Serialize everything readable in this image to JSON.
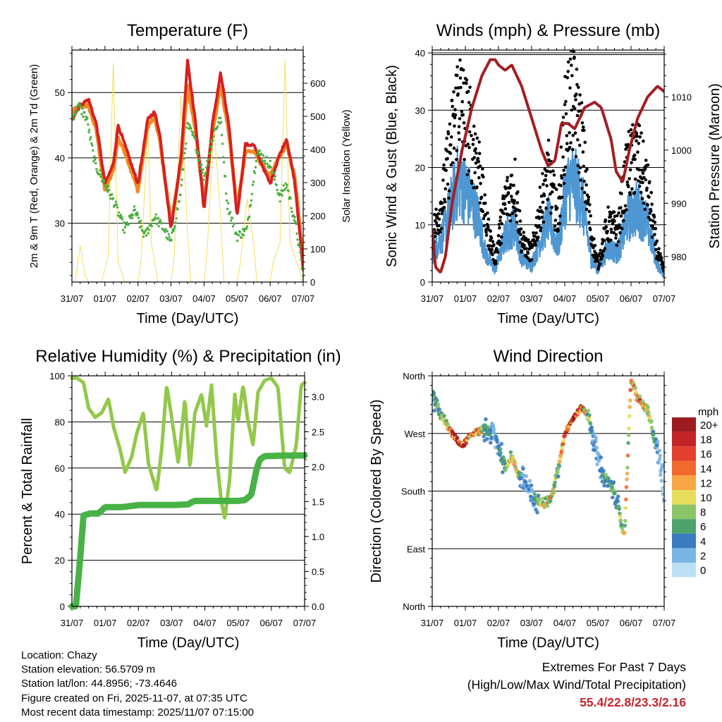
{
  "chart_data": [
    {
      "id": "temperature",
      "type": "line",
      "title": "Temperature (F)",
      "xlabel": "Time (Day/UTC)",
      "ylabel": "2m & 9m T (Red, Orange) & 2m Td (Green)",
      "y2label": "Solar Insolation (Yellow)",
      "x_tick_labels": [
        "31/07",
        "01/07",
        "02/07",
        "03/07",
        "04/07",
        "05/07",
        "06/07",
        "07/07"
      ],
      "xlim": [
        0,
        7
      ],
      "ylim": [
        21,
        56.5
      ],
      "y_ticks": [
        30,
        40,
        50
      ],
      "y2lim": [
        0,
        700
      ],
      "y2_ticks": [
        0,
        100,
        200,
        300,
        400,
        500,
        600
      ],
      "series": [
        {
          "name": "2m T",
          "color": "#d62020",
          "x": [
            0,
            0.25,
            0.5,
            0.75,
            1.0,
            1.25,
            1.4,
            1.6,
            2.0,
            2.3,
            2.5,
            2.65,
            3.0,
            3.3,
            3.5,
            3.75,
            4.0,
            4.25,
            4.5,
            4.75,
            5.0,
            5.25,
            5.5,
            5.75,
            6.0,
            6.25,
            6.5,
            6.75,
            7.0
          ],
          "values": [
            46,
            48,
            49,
            45,
            36,
            39,
            45,
            42,
            36,
            46,
            47,
            44,
            29,
            40,
            55,
            45,
            32,
            45,
            53,
            45,
            31,
            42,
            42,
            39,
            36,
            40,
            43,
            36,
            23
          ]
        },
        {
          "name": "9m T",
          "color": "#f08a24",
          "x": [
            0,
            0.25,
            0.5,
            0.75,
            1.0,
            1.25,
            1.4,
            1.6,
            2.0,
            2.3,
            2.5,
            2.65,
            3.0,
            3.3,
            3.5,
            3.75,
            4.0,
            4.25,
            4.5,
            4.75,
            5.0,
            5.25,
            5.5,
            5.75,
            6.0,
            6.25,
            6.5,
            6.75,
            7.0
          ],
          "values": [
            47,
            48,
            48,
            44,
            35,
            38,
            43,
            41,
            35,
            45,
            46,
            43,
            30,
            39,
            51,
            44,
            33,
            44,
            51,
            44,
            32,
            41,
            41,
            39,
            37,
            40,
            42,
            37,
            24
          ]
        },
        {
          "name": "2m Td",
          "color": "#4caf3f",
          "x": [
            0,
            0.2,
            0.45,
            0.7,
            1.0,
            1.3,
            1.6,
            1.9,
            2.2,
            2.5,
            2.8,
            3.0,
            3.3,
            3.5,
            3.7,
            4.0,
            4.3,
            4.5,
            4.7,
            5.0,
            5.3,
            5.6,
            6.0,
            6.3,
            6.5,
            6.8,
            7.0
          ],
          "values": [
            46,
            48,
            46,
            39,
            36,
            33,
            29,
            32,
            28,
            31,
            29,
            27,
            35,
            45,
            43,
            37,
            44,
            46,
            33,
            28,
            29,
            41,
            39,
            34,
            36,
            29,
            22
          ]
        },
        {
          "name": "Solar Insolation",
          "color": "#f3dd5e",
          "axis": "y2",
          "x": [
            0,
            0.1,
            0.25,
            0.4,
            0.5,
            0.9,
            1.1,
            1.25,
            1.4,
            1.6,
            2.0,
            2.1,
            2.3,
            2.4,
            2.6,
            3.0,
            3.1,
            3.3,
            3.5,
            3.6,
            4.0,
            4.1,
            4.3,
            4.5,
            4.6,
            5.0,
            5.1,
            5.3,
            5.5,
            5.6,
            6.0,
            6.1,
            6.3,
            6.45,
            6.6,
            7.0
          ],
          "values": [
            0,
            0,
            110,
            20,
            0,
            0,
            80,
            660,
            60,
            0,
            0,
            70,
            480,
            120,
            0,
            0,
            80,
            560,
            150,
            0,
            0,
            110,
            470,
            200,
            0,
            0,
            60,
            250,
            120,
            0,
            0,
            60,
            120,
            670,
            120,
            0
          ]
        }
      ]
    },
    {
      "id": "winds_pressure",
      "type": "scatter",
      "title": "Winds (mph) & Pressure (mb)",
      "xlabel": "Time (Day/UTC)",
      "ylabel": "Sonic Wind & Gust (Blue, Black)",
      "y2label": "Station Pressure (Maroon)",
      "x_tick_labels": [
        "31/07",
        "01/07",
        "02/07",
        "03/07",
        "04/07",
        "05/07",
        "06/07",
        "07/07"
      ],
      "xlim": [
        0,
        7
      ],
      "ylim": [
        0,
        40.5
      ],
      "y_ticks": [
        0,
        10,
        20,
        30,
        40
      ],
      "y2lim": [
        975.2,
        1018.8
      ],
      "y2_ticks": [
        980,
        990,
        1000,
        1010
      ],
      "series": [
        {
          "name": "Sonic Wind",
          "color": "#4e97d3",
          "x": [
            0,
            0.3,
            0.6,
            0.8,
            0.9,
            1.2,
            1.4,
            1.6,
            1.9,
            2.2,
            2.5,
            2.7,
            3.0,
            3.3,
            3.5,
            3.8,
            4.0,
            4.2,
            4.5,
            4.8,
            5.0,
            5.3,
            5.6,
            5.9,
            6.2,
            6.5,
            6.8,
            7.0
          ],
          "values": [
            5,
            8,
            14,
            18,
            17,
            14,
            11,
            5,
            2,
            8,
            10,
            4,
            3,
            8,
            11,
            6,
            15,
            18,
            15,
            4,
            2,
            6,
            5,
            11,
            13,
            10,
            3,
            1
          ]
        },
        {
          "name": "Gust",
          "color": "#000000",
          "x": [
            0,
            0.3,
            0.6,
            0.8,
            0.9,
            1.2,
            1.4,
            1.6,
            1.9,
            2.2,
            2.5,
            2.7,
            3.0,
            3.3,
            3.5,
            3.8,
            4.0,
            4.2,
            4.5,
            4.8,
            5.0,
            5.3,
            5.6,
            5.9,
            6.2,
            6.5,
            6.8,
            7.0
          ],
          "values": [
            8,
            14,
            25,
            33,
            30,
            25,
            21,
            11,
            4,
            14,
            17,
            7,
            5,
            14,
            19,
            11,
            27,
            33,
            25,
            8,
            3,
            10,
            9,
            20,
            22,
            16,
            5,
            2
          ]
        },
        {
          "name": "Station Pressure",
          "color": "#a31f24",
          "axis": "y2",
          "x": [
            0,
            0.1,
            0.25,
            0.4,
            0.6,
            0.9,
            1.2,
            1.5,
            1.75,
            1.9,
            2.0,
            2.2,
            2.4,
            2.7,
            3.0,
            3.3,
            3.5,
            3.7,
            3.9,
            4.1,
            4.3,
            4.6,
            4.9,
            5.1,
            5.4,
            5.55,
            5.75,
            5.95,
            6.2,
            6.5,
            6.8,
            7.0
          ],
          "values": [
            985,
            978,
            977,
            980,
            990,
            1000,
            1008,
            1014,
            1017,
            1017,
            1016,
            1015,
            1016,
            1012,
            1006,
            1000,
            997,
            998,
            1005,
            1005,
            1004,
            1008,
            1009,
            1008,
            1002,
            996,
            994,
            1000,
            1006,
            1010,
            1012,
            1011
          ]
        }
      ]
    },
    {
      "id": "rh_precip",
      "type": "line",
      "title": "Relative Humidity (%) & Precipitation (in)",
      "xlabel": "Time (Day/UTC)",
      "ylabel": "Percent & Total Rainfall",
      "x_tick_labels": [
        "31/07",
        "01/07",
        "02/07",
        "03/07",
        "04/07",
        "05/07",
        "06/07",
        "07/07"
      ],
      "xlim": [
        0,
        7
      ],
      "ylim": [
        0,
        100
      ],
      "y_ticks": [
        0,
        20,
        40,
        60,
        80,
        100
      ],
      "y2lim": [
        0,
        3.3
      ],
      "y2_ticks": [
        "0.0",
        "0.5",
        "1.0",
        "1.5",
        "2.0",
        "2.5",
        "3.0"
      ],
      "series": [
        {
          "name": "Relative Humidity",
          "color": "#93c84b",
          "x": [
            0,
            0.15,
            0.35,
            0.5,
            0.7,
            0.9,
            1.1,
            1.25,
            1.45,
            1.6,
            1.8,
            1.95,
            2.15,
            2.3,
            2.55,
            2.7,
            2.85,
            3.0,
            3.2,
            3.4,
            3.55,
            3.7,
            3.9,
            4.05,
            4.2,
            4.35,
            4.5,
            4.6,
            4.75,
            4.9,
            5.0,
            5.15,
            5.3,
            5.45,
            5.6,
            5.8,
            6.0,
            6.2,
            6.4,
            6.55,
            6.75,
            6.9,
            7.0
          ],
          "values": [
            99,
            99,
            97,
            86,
            82,
            84,
            90,
            78,
            68,
            58,
            65,
            75,
            84,
            62,
            50,
            68,
            96,
            82,
            62,
            90,
            60,
            84,
            92,
            78,
            96,
            65,
            45,
            38,
            56,
            92,
            80,
            96,
            80,
            70,
            93,
            98,
            99,
            95,
            60,
            58,
            70,
            96,
            97
          ]
        },
        {
          "name": "Total Precipitation",
          "color": "#49b246",
          "axis": "y2",
          "x": [
            0,
            0.12,
            0.25,
            0.35,
            0.55,
            0.8,
            1.0,
            1.5,
            2.0,
            3.0,
            3.5,
            3.6,
            3.7,
            4.0,
            4.5,
            5.0,
            5.2,
            5.4,
            5.55,
            5.65,
            5.8,
            6.5,
            7.0
          ],
          "values": [
            0,
            0,
            0.7,
            1.3,
            1.33,
            1.33,
            1.42,
            1.42,
            1.45,
            1.45,
            1.46,
            1.49,
            1.51,
            1.51,
            1.51,
            1.51,
            1.52,
            1.6,
            1.95,
            2.1,
            2.15,
            2.16,
            2.16
          ]
        }
      ]
    },
    {
      "id": "wind_direction",
      "type": "scatter",
      "title": "Wind Direction",
      "xlabel": "Time (Day/UTC)",
      "ylabel": "Direction (Colored By Speed)",
      "x_tick_labels": [
        "31/07",
        "01/07",
        "02/07",
        "03/07",
        "04/07",
        "05/07",
        "06/07",
        "07/07"
      ],
      "xlim": [
        0,
        7
      ],
      "ylim": [
        0,
        360
      ],
      "y_tick_values": [
        0,
        90,
        180,
        270,
        360
      ],
      "y_tick_labels": [
        "North",
        "East",
        "South",
        "West",
        "North"
      ],
      "series": [
        {
          "name": "Wind Direction",
          "x": [
            0,
            0.3,
            0.6,
            0.9,
            1.2,
            1.5,
            1.8,
            2.0,
            2.2,
            2.4,
            2.6,
            2.8,
            3.0,
            3.2,
            3.4,
            3.6,
            3.8,
            4.0,
            4.2,
            4.5,
            4.7,
            5.0,
            5.2,
            5.5,
            5.7,
            5.8,
            6.0,
            6.2,
            6.5,
            6.7,
            6.9,
            7.0
          ],
          "values": [
            330,
            295,
            270,
            250,
            270,
            275,
            272,
            250,
            215,
            235,
            205,
            195,
            170,
            165,
            160,
            170,
            215,
            270,
            290,
            310,
            300,
            230,
            200,
            180,
            130,
            110,
            355,
            325,
            305,
            265,
            220,
            180
          ]
        }
      ],
      "legend": {
        "title": "mph",
        "labels": [
          "20+",
          "18",
          "16",
          "14",
          "12",
          "10",
          "8",
          "6",
          "4",
          "2",
          "0"
        ],
        "colors": [
          "#9c1b1f",
          "#c42427",
          "#e33f2d",
          "#f2692e",
          "#f7a645",
          "#e6dd5c",
          "#8cc46a",
          "#4ca36b",
          "#3b7bbf",
          "#7ab4e3",
          "#bde0f5"
        ]
      }
    }
  ],
  "info": {
    "location": "Location: Chazy",
    "elevation": "Station elevation: 56.5709 m",
    "latlon": "Station lat/lon: 44.8956; -73.4646",
    "created": "Figure created on Fri, 2025-11-07, at 07:35 UTC",
    "latest": "Most recent data timestamp: 2025/11/07 07:15:00"
  },
  "extremes": {
    "title": "Extremes For Past 7 Days",
    "subtitle": "(High/Low/Max Wind/Total Precipitation)",
    "values": "55.4/22.8/23.3/2.16"
  }
}
